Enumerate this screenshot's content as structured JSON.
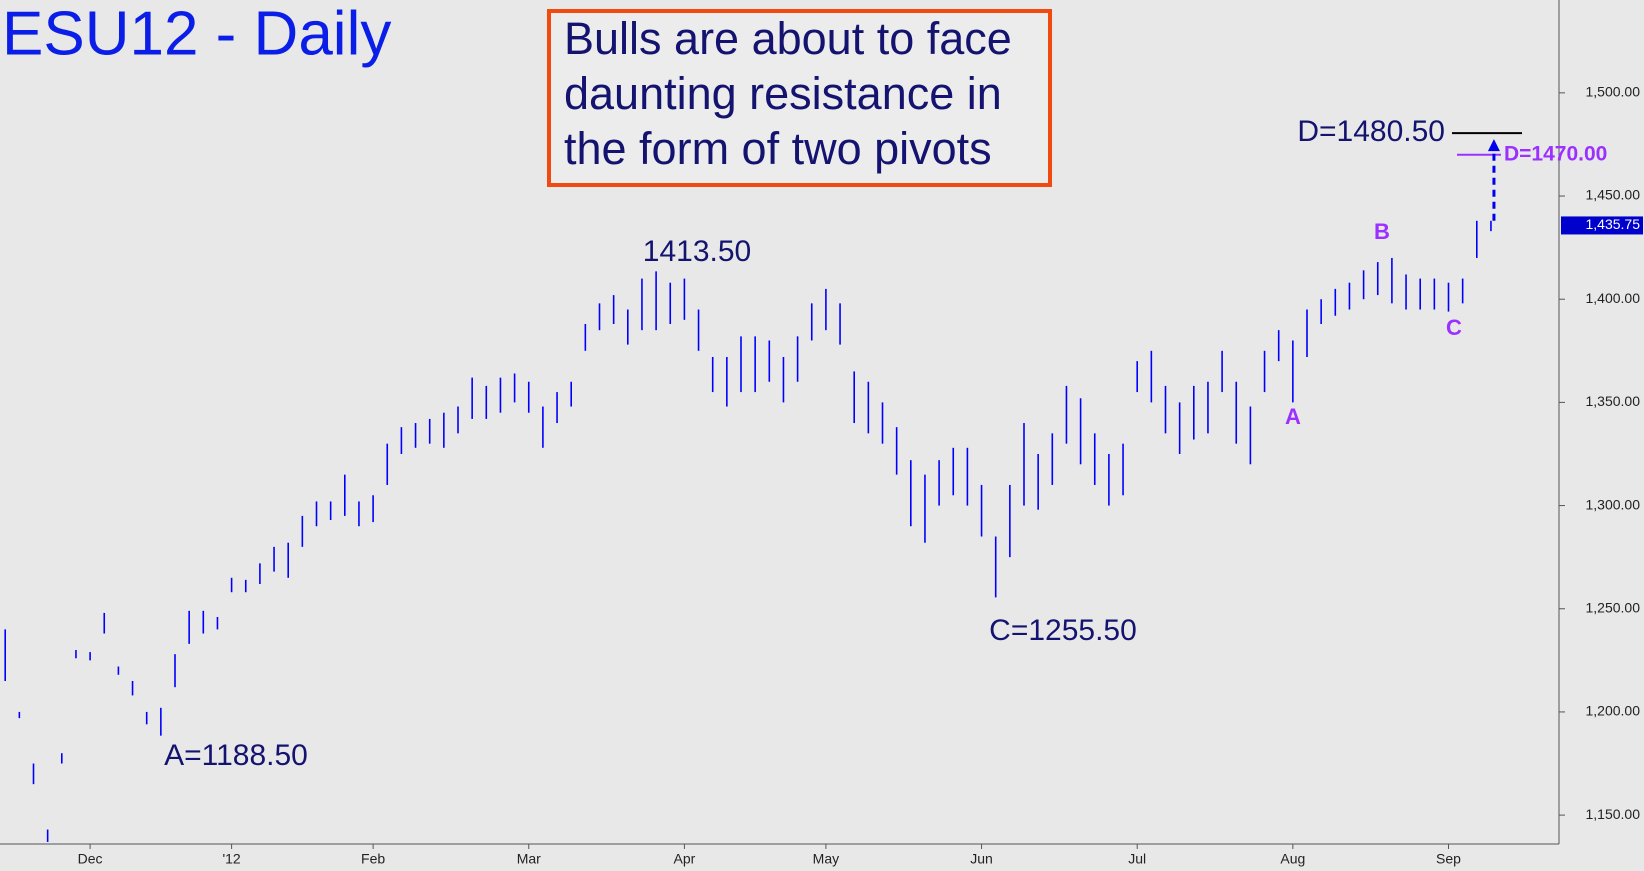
{
  "chart_data": {
    "type": "ohlc",
    "title": "ESU12 - Daily",
    "callout": [
      "Bulls are about to face",
      "daunting resistance in",
      "the form of two pivots"
    ],
    "color": "#0000ff",
    "categories": [
      null,
      null,
      null,
      null,
      null,
      null,
      "Dec",
      null,
      null,
      null,
      null,
      null,
      null,
      null,
      null,
      null,
      "'12",
      null,
      null,
      null,
      null,
      null,
      null,
      null,
      null,
      null,
      "Feb",
      null,
      null,
      null,
      null,
      null,
      null,
      null,
      null,
      null,
      null,
      "Mar",
      null,
      null,
      null,
      null,
      null,
      null,
      null,
      null,
      null,
      null,
      "Apr",
      null,
      null,
      null,
      null,
      null,
      null,
      null,
      null,
      null,
      "May",
      null,
      null,
      null,
      null,
      null,
      null,
      null,
      null,
      null,
      null,
      "Jun",
      null,
      null,
      null,
      null,
      null,
      null,
      null,
      null,
      null,
      null,
      "Jul",
      null,
      null,
      null,
      null,
      null,
      null,
      null,
      null,
      null,
      null,
      "Aug",
      null,
      null,
      null,
      null,
      null,
      null,
      null,
      null,
      null,
      null,
      "Sep",
      null,
      null,
      null
    ],
    "high": [
      1240,
      1200,
      1175,
      1143,
      1180,
      1230,
      1229,
      1248,
      1222,
      1215,
      1200,
      1202,
      1228,
      1249,
      1249,
      1246,
      1265,
      1264,
      1272,
      1280,
      1282,
      1295,
      1302,
      1302,
      1315,
      1302,
      1305,
      1330,
      1338,
      1340,
      1342,
      1345,
      1348,
      1362,
      1358,
      1362,
      1364,
      1360,
      1348,
      1355,
      1360,
      1388,
      1398,
      1402,
      1395,
      1410,
      1413.5,
      1408,
      1410,
      1395,
      1372,
      1372,
      1382,
      1382,
      1380,
      1372,
      1382,
      1398,
      1405,
      1398,
      1365,
      1360,
      1350,
      1338,
      1322,
      1315,
      1322,
      1328,
      1328,
      1310,
      1285,
      1310,
      1340,
      1325,
      1335,
      1358,
      1352,
      1335,
      1325,
      1330,
      1370,
      1375,
      1358,
      1350,
      1358,
      1360,
      1375,
      1360,
      1348,
      1375,
      1385,
      1380,
      1395,
      1400,
      1405,
      1408,
      1414,
      1418,
      1420,
      1412,
      1410,
      1410,
      1408,
      1410,
      1438,
      1438
    ],
    "low": [
      1215,
      1197,
      1165,
      1137,
      1175,
      1226,
      1225,
      1238,
      1218,
      1208,
      1194,
      1188.5,
      1212,
      1233,
      1238,
      1240,
      1258,
      1258,
      1262,
      1268,
      1265,
      1280,
      1290,
      1293,
      1295,
      1290,
      1292,
      1310,
      1325,
      1328,
      1330,
      1328,
      1335,
      1342,
      1342,
      1345,
      1350,
      1345,
      1328,
      1340,
      1348,
      1375,
      1385,
      1388,
      1378,
      1385,
      1385,
      1388,
      1390,
      1375,
      1355,
      1348,
      1355,
      1355,
      1360,
      1350,
      1360,
      1380,
      1385,
      1378,
      1340,
      1335,
      1330,
      1315,
      1290,
      1282,
      1300,
      1305,
      1300,
      1285,
      1255.5,
      1275,
      1300,
      1298,
      1310,
      1330,
      1320,
      1310,
      1300,
      1305,
      1355,
      1350,
      1335,
      1325,
      1332,
      1335,
      1355,
      1330,
      1320,
      1355,
      1370,
      1350,
      1372,
      1388,
      1392,
      1395,
      1400,
      1402,
      1398,
      1395,
      1395,
      1395,
      1394,
      1398,
      1420,
      1433
    ],
    "ylim": [
      1136,
      1545
    ],
    "yticks": [
      {
        "value": 1150,
        "label": "1,150.00"
      },
      {
        "value": 1200,
        "label": "1,200.00"
      },
      {
        "value": 1250,
        "label": "1,250.00"
      },
      {
        "value": 1300,
        "label": "1,300.00"
      },
      {
        "value": 1350,
        "label": "1,350.00"
      },
      {
        "value": 1400,
        "label": "1,400.00"
      },
      {
        "value": 1450,
        "label": "1,450.00"
      },
      {
        "value": 1500,
        "label": "1,500.00"
      }
    ],
    "last_price": {
      "value": 1435.75,
      "label": "1,435.75"
    },
    "annotations": [
      "1413.50",
      "A=1188.50",
      "C=1255.50"
    ],
    "pivot_labels": [
      "A",
      "B",
      "C"
    ],
    "levels": [
      {
        "label": "D=1480.50",
        "value": 1480.5,
        "color": "#000000"
      },
      {
        "label": "D=1470.00",
        "value": 1470,
        "color": "#9b30ff"
      }
    ]
  }
}
